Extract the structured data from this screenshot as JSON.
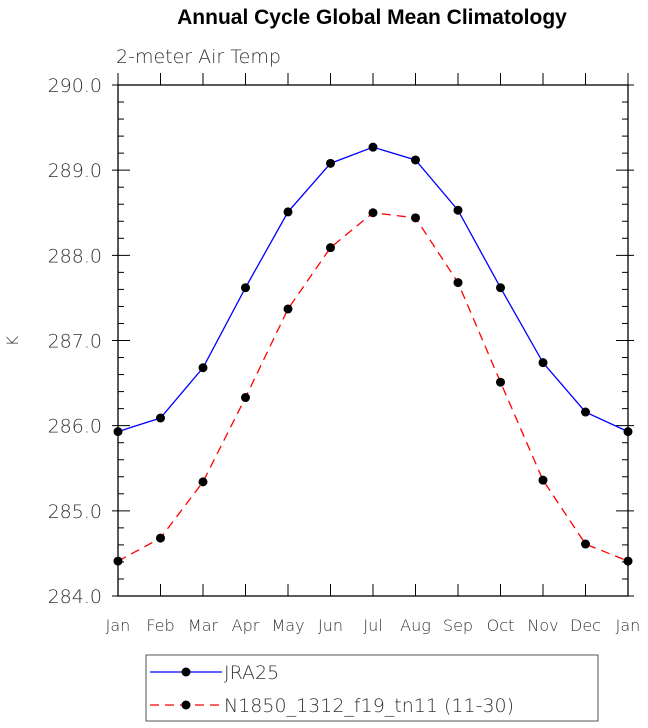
{
  "chart_data": {
    "type": "line",
    "title": "Annual Cycle Global Mean Climatology",
    "subtitle": "2-meter Air Temp",
    "xlabel": "",
    "ylabel": "K",
    "categories": [
      "Jan",
      "Feb",
      "Mar",
      "Apr",
      "May",
      "Jun",
      "Jul",
      "Aug",
      "Sep",
      "Oct",
      "Nov",
      "Dec",
      "Jan"
    ],
    "ylim": [
      284.0,
      290.0
    ],
    "yticks": [
      "284.0",
      "285.0",
      "286.0",
      "287.0",
      "288.0",
      "289.0",
      "290.0"
    ],
    "grid": false,
    "legend_position": "bottom",
    "series": [
      {
        "name": "JRA25",
        "color": "#0000ff",
        "dash": "solid",
        "values": [
          285.93,
          286.09,
          286.68,
          287.62,
          288.51,
          289.08,
          289.27,
          289.12,
          288.53,
          287.62,
          286.74,
          286.16,
          285.93
        ]
      },
      {
        "name": "N1850_1312_f19_tn11 (11-30)",
        "color": "#ff0000",
        "dash": "dashed",
        "values": [
          284.41,
          284.68,
          285.34,
          286.33,
          287.37,
          288.09,
          288.5,
          288.44,
          287.68,
          286.51,
          285.36,
          284.61,
          284.41
        ]
      }
    ]
  }
}
